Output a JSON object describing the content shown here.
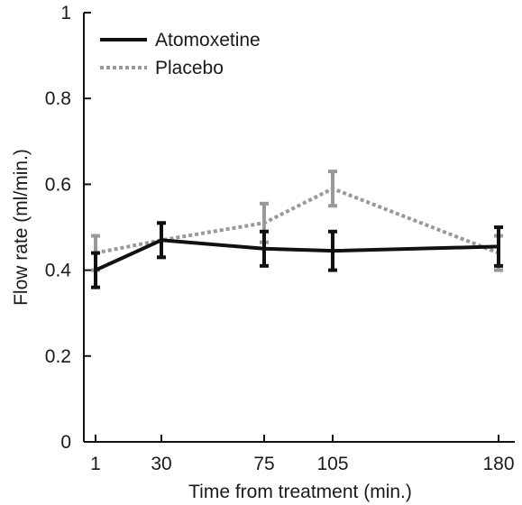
{
  "chart_data": {
    "type": "line",
    "xlabel": "Time from treatment (min.)",
    "ylabel": "Flow rate (ml/min.)",
    "categories": [
      "1",
      "30",
      "75",
      "105",
      "180"
    ],
    "ylim": [
      0,
      1
    ],
    "yticks": [
      "0",
      "0.2",
      "0.4",
      "0.6",
      "0.8",
      "1"
    ],
    "ytick_values": [
      0,
      0.2,
      0.4,
      0.6,
      0.8,
      1
    ],
    "grid": false,
    "legend_position": "top-left",
    "series": [
      {
        "name": "Atomoxetine",
        "style": "solid",
        "color": "#111111",
        "values": [
          0.4,
          0.47,
          0.45,
          0.445,
          0.455
        ],
        "errors": [
          0.04,
          0.04,
          0.04,
          0.045,
          0.045
        ]
      },
      {
        "name": "Placebo",
        "style": "dotted",
        "color": "#999999",
        "values": [
          0.44,
          0.47,
          0.51,
          0.59,
          0.44
        ],
        "errors": [
          0.04,
          0.04,
          0.045,
          0.04,
          0.04
        ]
      }
    ]
  }
}
